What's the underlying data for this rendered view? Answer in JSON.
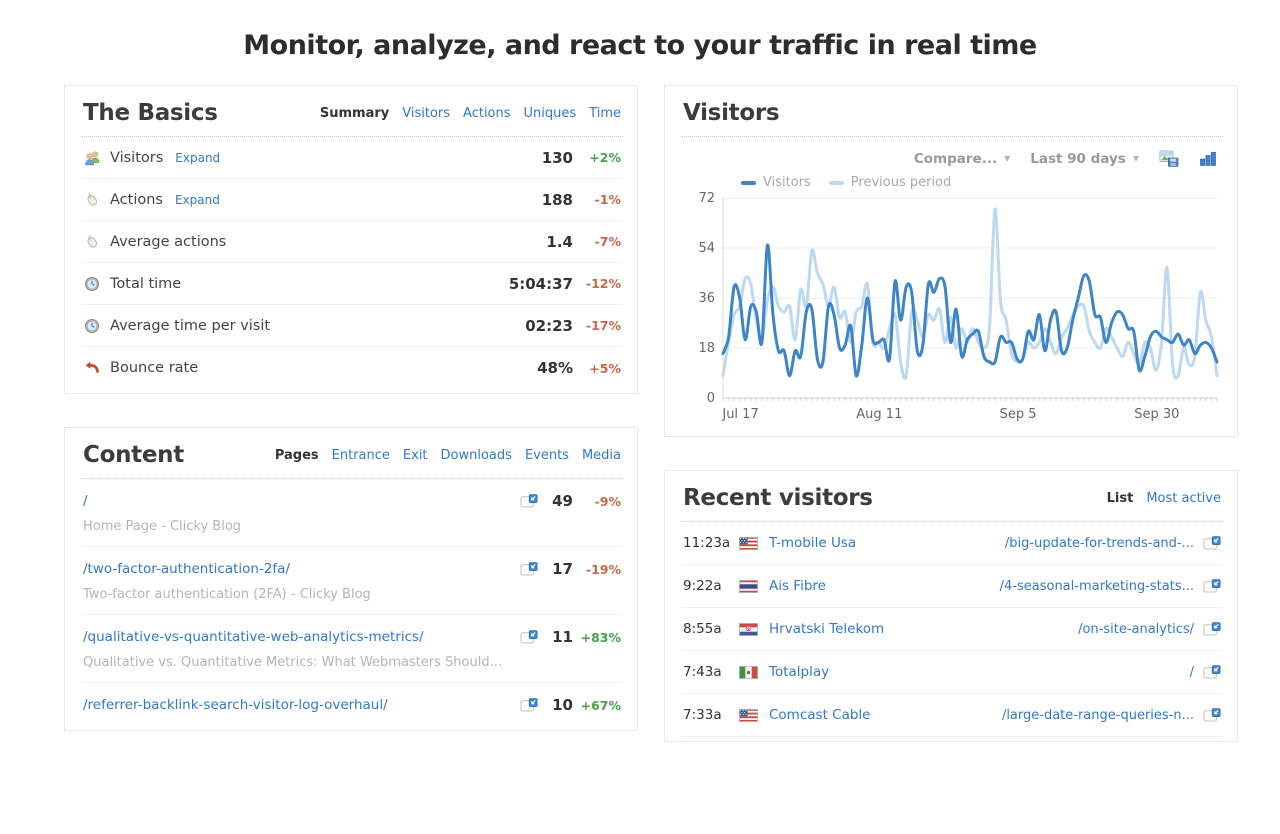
{
  "page_title": "Monitor, analyze, and react to your traffic in real time",
  "palette": {
    "link_blue": "#3377cc",
    "good_green": "#4aa04a",
    "bad_orange": "#c9664a",
    "visitors_line": "#3d85c8",
    "previous_line": "#bcd9f1"
  },
  "basics": {
    "title": "The Basics",
    "tabs": [
      {
        "label": "Summary",
        "active": true
      },
      {
        "label": "Visitors",
        "active": false
      },
      {
        "label": "Actions",
        "active": false
      },
      {
        "label": "Uniques",
        "active": false
      },
      {
        "label": "Time",
        "active": false
      }
    ],
    "rows": [
      {
        "icon": "visitors-icon",
        "label": "Visitors",
        "expand": "Expand",
        "value": "130",
        "pct": "+2%",
        "trend": "good"
      },
      {
        "icon": "mouse-icon",
        "label": "Actions",
        "expand": "Expand",
        "value": "188",
        "pct": "-1%",
        "trend": "bad"
      },
      {
        "icon": "mouse-icon",
        "label": "Average actions",
        "expand": "",
        "value": "1.4",
        "pct": "-7%",
        "trend": "bad"
      },
      {
        "icon": "clock-icon",
        "label": "Total time",
        "expand": "",
        "value": "5:04:37",
        "pct": "-12%",
        "trend": "bad"
      },
      {
        "icon": "clock-icon",
        "label": "Average time per visit",
        "expand": "",
        "value": "02:23",
        "pct": "-17%",
        "trend": "bad"
      },
      {
        "icon": "bounce-icon",
        "label": "Bounce rate",
        "expand": "",
        "value": "48%",
        "pct": "+5%",
        "trend": "bad"
      }
    ]
  },
  "visitors_panel": {
    "title": "Visitors",
    "compare_label": "Compare...",
    "range_label": "Last 90 days"
  },
  "chart_data": {
    "type": "line",
    "title": "Visitors",
    "legend_position": "top-left",
    "grid": true,
    "ylim": [
      0,
      72
    ],
    "y_ticks": [
      0,
      18,
      36,
      54,
      72
    ],
    "x_tick_labels": [
      "Jul 17",
      "Aug 11",
      "Sep 5",
      "Sep 30"
    ],
    "x_tick_indices": [
      1,
      26,
      51,
      76
    ],
    "series": [
      {
        "name": "Visitors",
        "color": "#3d85c8",
        "values": [
          16,
          22,
          40,
          36,
          21,
          33,
          31,
          20,
          55,
          30,
          17,
          17,
          8,
          17,
          15,
          31,
          32,
          14,
          13,
          33,
          30,
          18,
          19,
          26,
          8,
          19,
          36,
          21,
          20,
          21,
          14,
          42,
          28,
          40,
          38,
          17,
          19,
          41,
          38,
          43,
          40,
          20,
          32,
          15,
          21,
          23,
          24,
          15,
          13,
          13,
          22,
          20,
          20,
          14,
          14,
          24,
          21,
          30,
          17,
          28,
          31,
          17,
          18,
          28,
          36,
          44,
          42,
          30,
          29,
          20,
          27,
          31,
          30,
          25,
          24,
          10,
          15,
          22,
          24,
          22,
          21,
          20,
          23,
          19,
          21,
          16,
          19,
          20,
          18,
          13
        ]
      },
      {
        "name": "Previous period",
        "color": "#bcd9f1",
        "values": [
          8,
          20,
          30,
          33,
          43,
          41,
          28,
          21,
          35,
          40,
          33,
          31,
          33,
          21,
          39,
          33,
          53,
          45,
          41,
          33,
          40,
          29,
          31,
          20,
          31,
          33,
          41,
          20,
          20,
          18,
          25,
          30,
          13,
          8,
          31,
          28,
          22,
          30,
          28,
          32,
          20,
          29,
          18,
          25,
          20,
          25,
          20,
          18,
          25,
          68,
          35,
          28,
          16,
          13,
          14,
          20,
          18,
          20,
          25,
          20,
          16,
          22,
          25,
          30,
          33,
          33,
          24,
          20,
          18,
          25,
          22,
          18,
          15,
          20,
          16,
          12,
          20,
          18,
          10,
          20,
          47,
          12,
          8,
          18,
          12,
          15,
          38,
          28,
          22,
          8
        ]
      }
    ]
  },
  "content": {
    "title": "Content",
    "tabs": [
      {
        "label": "Pages",
        "active": true
      },
      {
        "label": "Entrance",
        "active": false
      },
      {
        "label": "Exit",
        "active": false
      },
      {
        "label": "Downloads",
        "active": false
      },
      {
        "label": "Events",
        "active": false
      },
      {
        "label": "Media",
        "active": false
      }
    ],
    "rows": [
      {
        "path": "/",
        "subtitle": "Home Page - Clicky Blog",
        "count": "49",
        "pct": "-9%",
        "trend": "bad"
      },
      {
        "path": "/two-factor-authentication-2fa/",
        "subtitle": "Two-factor authentication (2FA) - Clicky Blog",
        "count": "17",
        "pct": "-19%",
        "trend": "bad"
      },
      {
        "path": "/qualitative-vs-quantitative-web-analytics-metrics/",
        "subtitle": "Qualitative vs. Quantitative Metrics: What Webmasters Should...",
        "count": "11",
        "pct": "+83%",
        "trend": "good"
      },
      {
        "path": "/referrer-backlink-search-visitor-log-overhaul/",
        "subtitle": "",
        "count": "10",
        "pct": "+67%",
        "trend": "good"
      }
    ]
  },
  "recent_visitors": {
    "title": "Recent visitors",
    "tabs": [
      {
        "label": "List",
        "active": true
      },
      {
        "label": "Most active",
        "active": false
      }
    ],
    "rows": [
      {
        "time": "11:23a",
        "flag": "us",
        "name": "T-mobile Usa",
        "page": "/big-update-for-trends-and-..."
      },
      {
        "time": "9:22a",
        "flag": "th",
        "name": "Ais Fibre",
        "page": "/4-seasonal-marketing-stats..."
      },
      {
        "time": "8:55a",
        "flag": "hr",
        "name": "Hrvatski Telekom",
        "page": "/on-site-analytics/"
      },
      {
        "time": "7:43a",
        "flag": "mx",
        "name": "Totalplay",
        "page": "/"
      },
      {
        "time": "7:33a",
        "flag": "us",
        "name": "Comcast Cable",
        "page": "/large-date-range-queries-n..."
      }
    ]
  }
}
